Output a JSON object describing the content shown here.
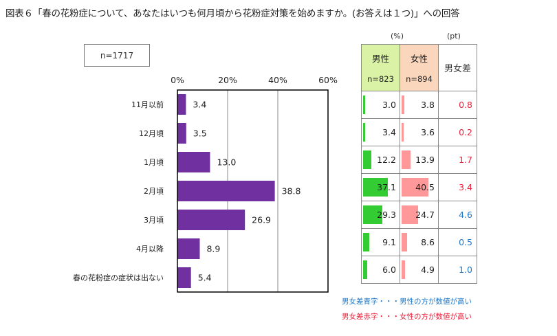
{
  "title": "図表６「春の花粉症について、あなたはいつも何月頃から花粉症対策を始めますか。(お答えは１つ)」への回答",
  "sample_size": "n=1717",
  "colors": {
    "bar": "#7030a0",
    "male_bar": "#33cc33",
    "female_bar": "#ff9999",
    "blue_text": "#1f77c4",
    "red_text": "#e8203a",
    "male_header": "#d9f2a6",
    "female_header": "#fad6bc"
  },
  "chart_data": {
    "type": "bar",
    "orientation": "horizontal",
    "categories": [
      "11月以前",
      "12月頃",
      "1月頃",
      "2月頃",
      "3月頃",
      "4月以降",
      "春の花粉症の症状は出ない"
    ],
    "values": [
      3.4,
      3.5,
      13.0,
      38.8,
      26.9,
      8.9,
      5.4
    ],
    "value_labels": [
      "3.4",
      "3.5",
      "13.0",
      "38.8",
      "26.9",
      "8.9",
      "5.4"
    ],
    "xlim": [
      0,
      60
    ],
    "ticks": [
      0,
      20,
      40,
      60
    ],
    "tick_labels": [
      "0%",
      "20%",
      "40%",
      "60%"
    ],
    "grid": true
  },
  "table": {
    "unit_pct": "(%)",
    "unit_pt": "(pt)",
    "male_label": "男性",
    "male_n": "n=823",
    "female_label": "女性",
    "female_n": "n=894",
    "diff_label": "男女差",
    "rows": [
      {
        "male": 3.0,
        "male_text": "3.0",
        "female": 3.8,
        "female_text": "3.8",
        "diff": "0.8",
        "diff_color": "red"
      },
      {
        "male": 3.4,
        "male_text": "3.4",
        "female": 3.6,
        "female_text": "3.6",
        "diff": "0.2",
        "diff_color": "red"
      },
      {
        "male": 12.2,
        "male_text": "12.2",
        "female": 13.9,
        "female_text": "13.9",
        "diff": "1.7",
        "diff_color": "red"
      },
      {
        "male": 37.1,
        "male_text": "37.1",
        "female": 40.5,
        "female_text": "40.5",
        "diff": "3.4",
        "diff_color": "red"
      },
      {
        "male": 29.3,
        "male_text": "29.3",
        "female": 24.7,
        "female_text": "24.7",
        "diff": "4.6",
        "diff_color": "blue"
      },
      {
        "male": 9.1,
        "male_text": "9.1",
        "female": 8.6,
        "female_text": "8.6",
        "diff": "0.5",
        "diff_color": "blue"
      },
      {
        "male": 6.0,
        "male_text": "6.0",
        "female": 4.9,
        "female_text": "4.9",
        "diff": "1.0",
        "diff_color": "blue"
      }
    ]
  },
  "legend": {
    "blue": "男女差青字・・・男性の方が数値が高い",
    "red": "男女差赤字・・・女性の方が数値が高い"
  }
}
